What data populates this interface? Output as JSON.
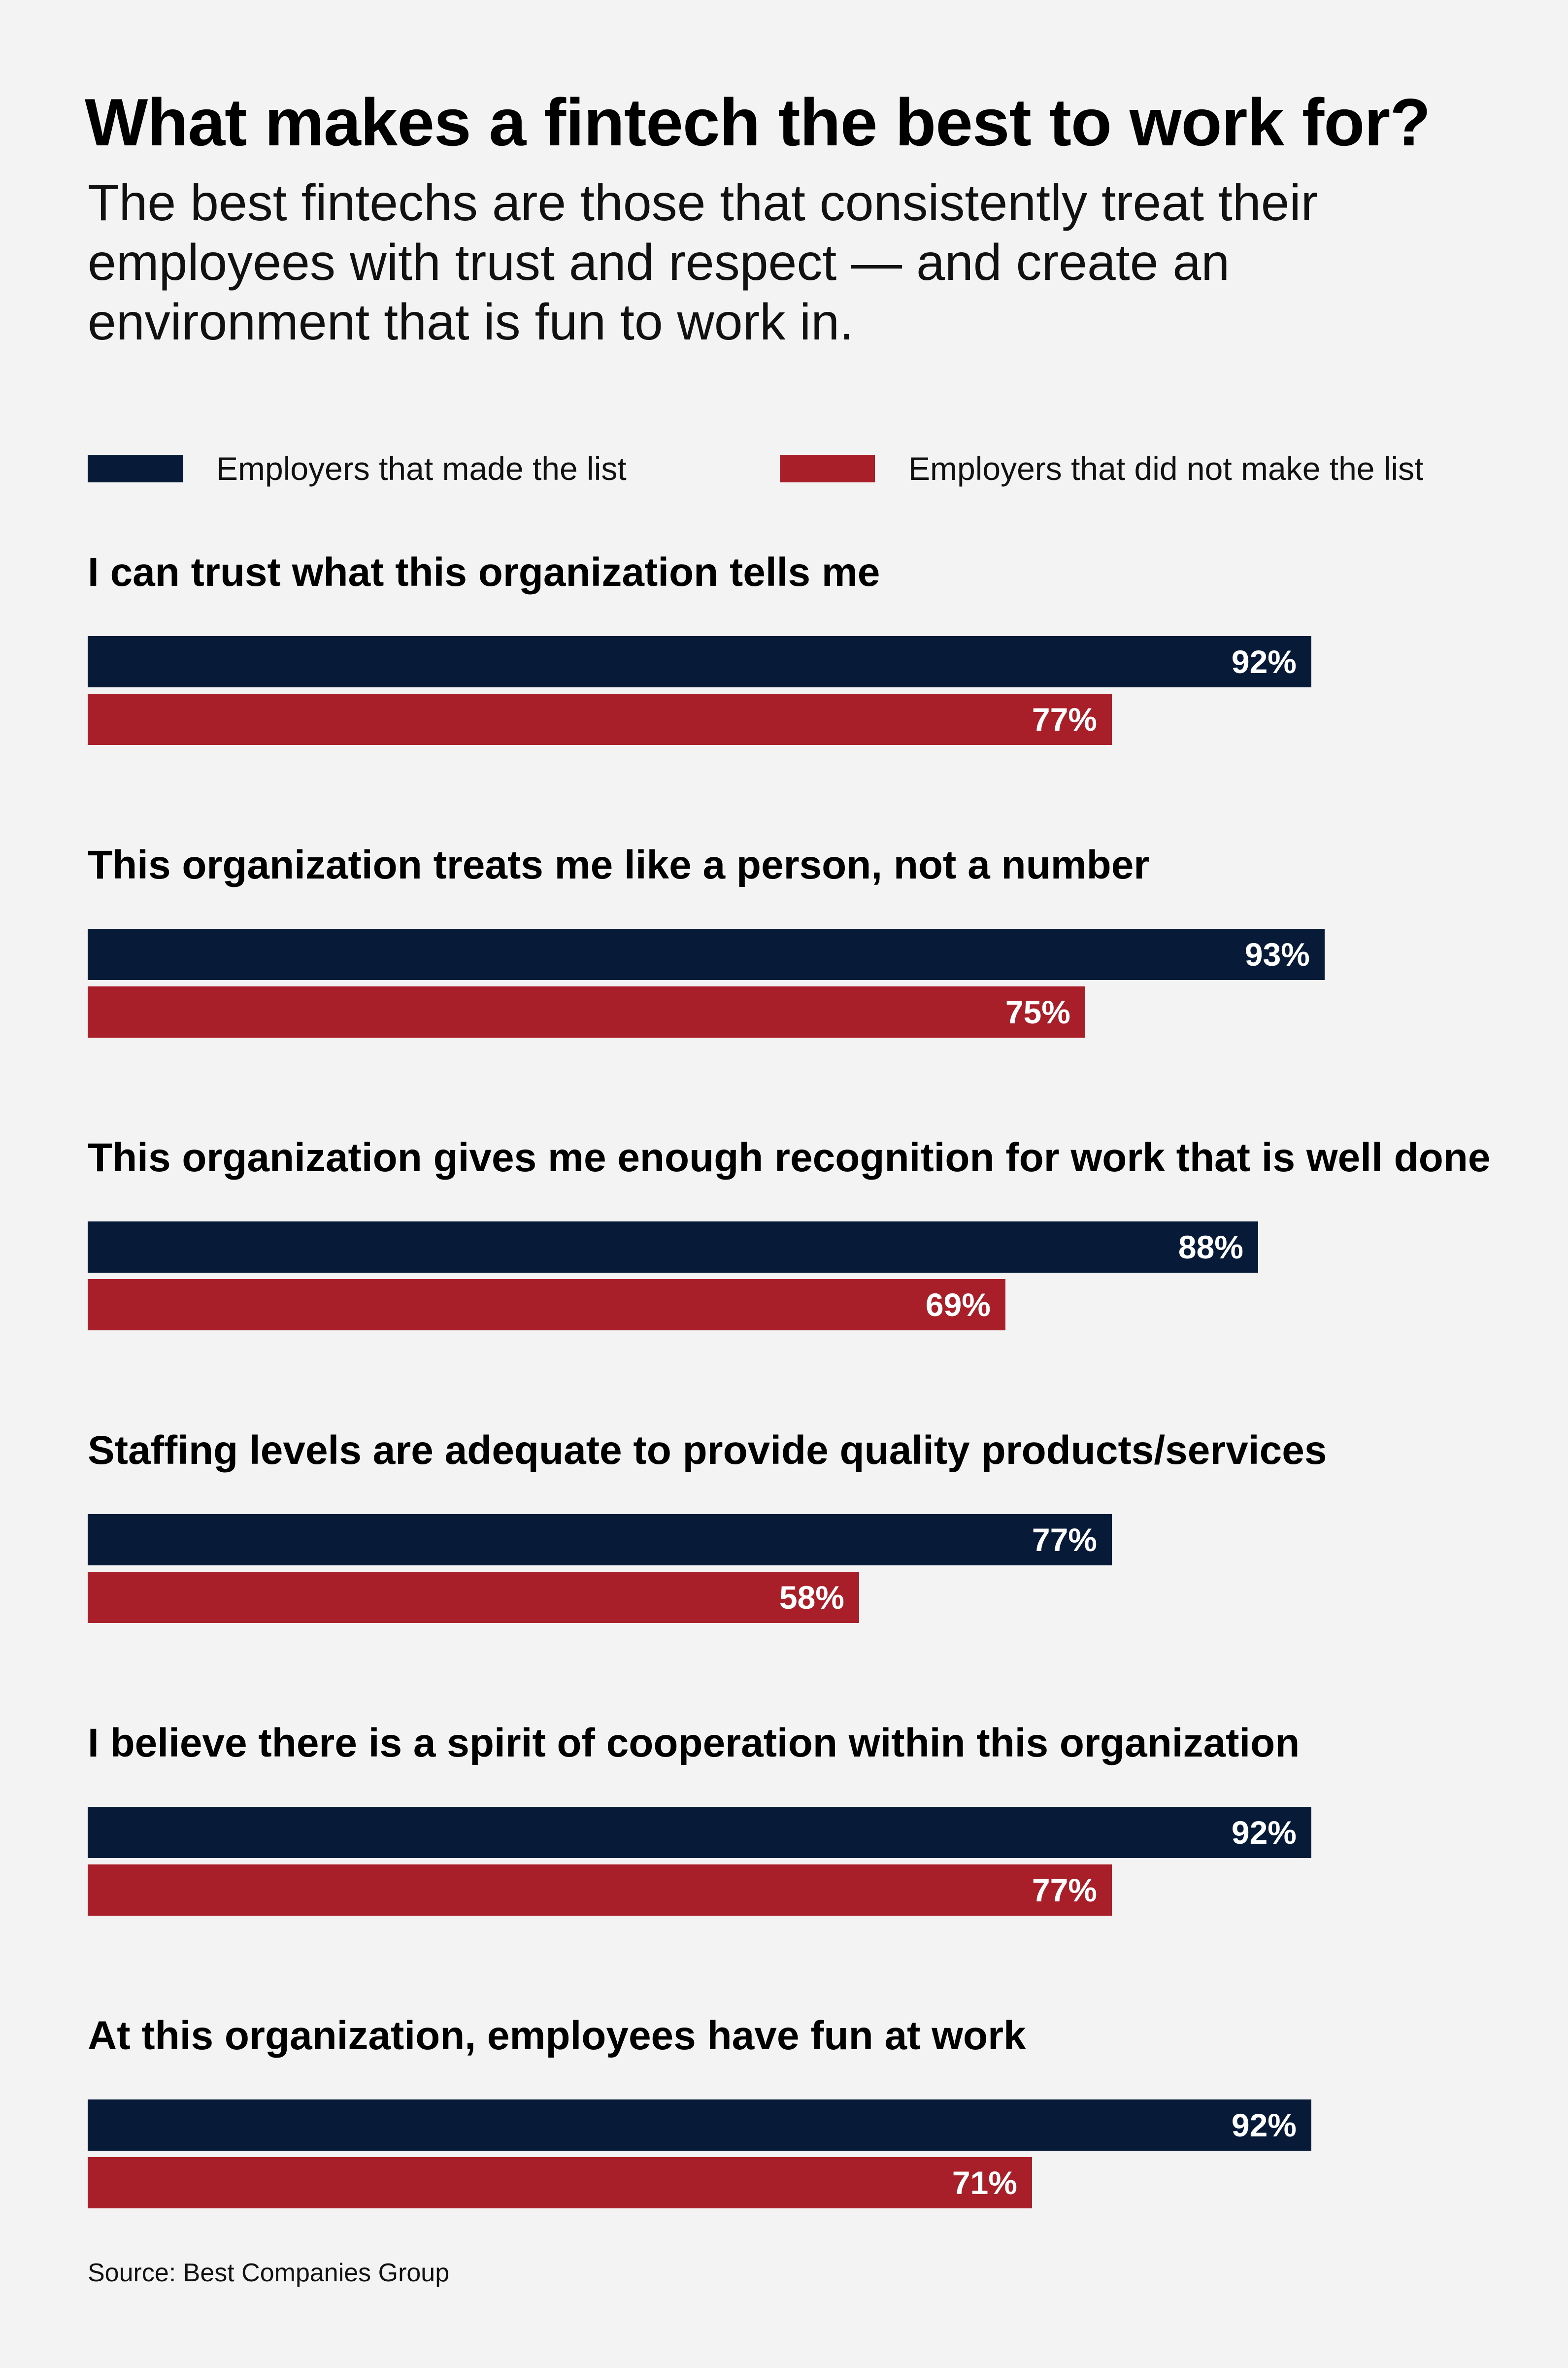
{
  "colors": {
    "made_list": "#071b38",
    "not_made_list": "#a91f29",
    "background": "#f3f3f3"
  },
  "chart_data": {
    "type": "bar",
    "orientation": "horizontal",
    "title": "What makes a fintech the best to work for?",
    "subtitle": "The best fintechs are those that consistently treat their employees with trust and respect — and create an environment that is fun to work in.",
    "legend": [
      "Employers that made the list",
      "Employers that did not make the list"
    ],
    "legend_placement": "top",
    "categories": [
      "I can trust what this organization tells me",
      "This organization treats me like a person, not a number",
      "This organization gives me enough recognition for work that is well done",
      "Staffing levels are adequate to provide quality products/services",
      "I believe there is a spirit of cooperation within this organization",
      "At this organization, employees have fun at work"
    ],
    "series": [
      {
        "name": "Employers that made the list",
        "values": [
          92,
          93,
          88,
          77,
          92,
          92
        ],
        "labels": [
          "92%",
          "93%",
          "88%",
          "77%",
          "92%",
          "92%"
        ]
      },
      {
        "name": "Employers that did not make the list",
        "values": [
          77,
          75,
          69,
          58,
          77,
          71
        ],
        "labels": [
          "77%",
          "75%",
          "69%",
          "58%",
          "77%",
          "71%"
        ]
      }
    ],
    "xlim": [
      0,
      100
    ],
    "grid": false,
    "source": "Source: Best Companies Group"
  }
}
